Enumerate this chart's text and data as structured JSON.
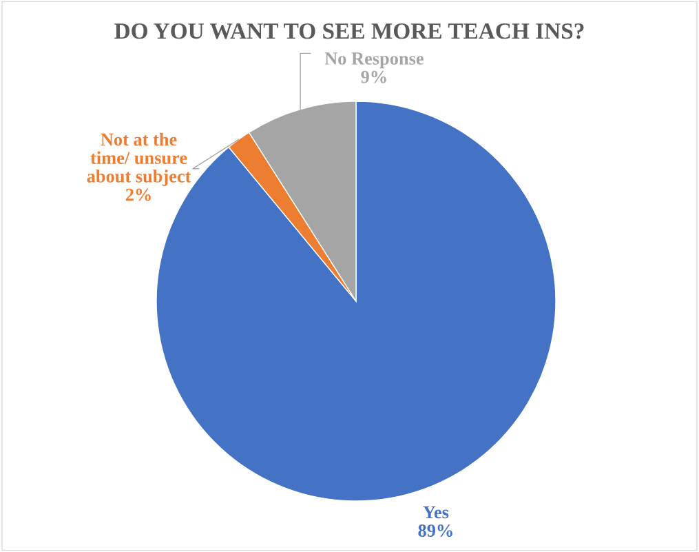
{
  "chart_data": {
    "type": "pie",
    "title": "DO YOU WANT TO SEE MORE TEACH INS?",
    "categories": [
      "Yes",
      "Not at the\ntime/ unsure\nabout subject",
      "No Response"
    ],
    "values": [
      89,
      2,
      9
    ],
    "value_labels": [
      "89%",
      "2%",
      "9%"
    ],
    "colors": [
      "#4472c4",
      "#ed7d31",
      "#a5a5a5"
    ],
    "legend": false
  }
}
